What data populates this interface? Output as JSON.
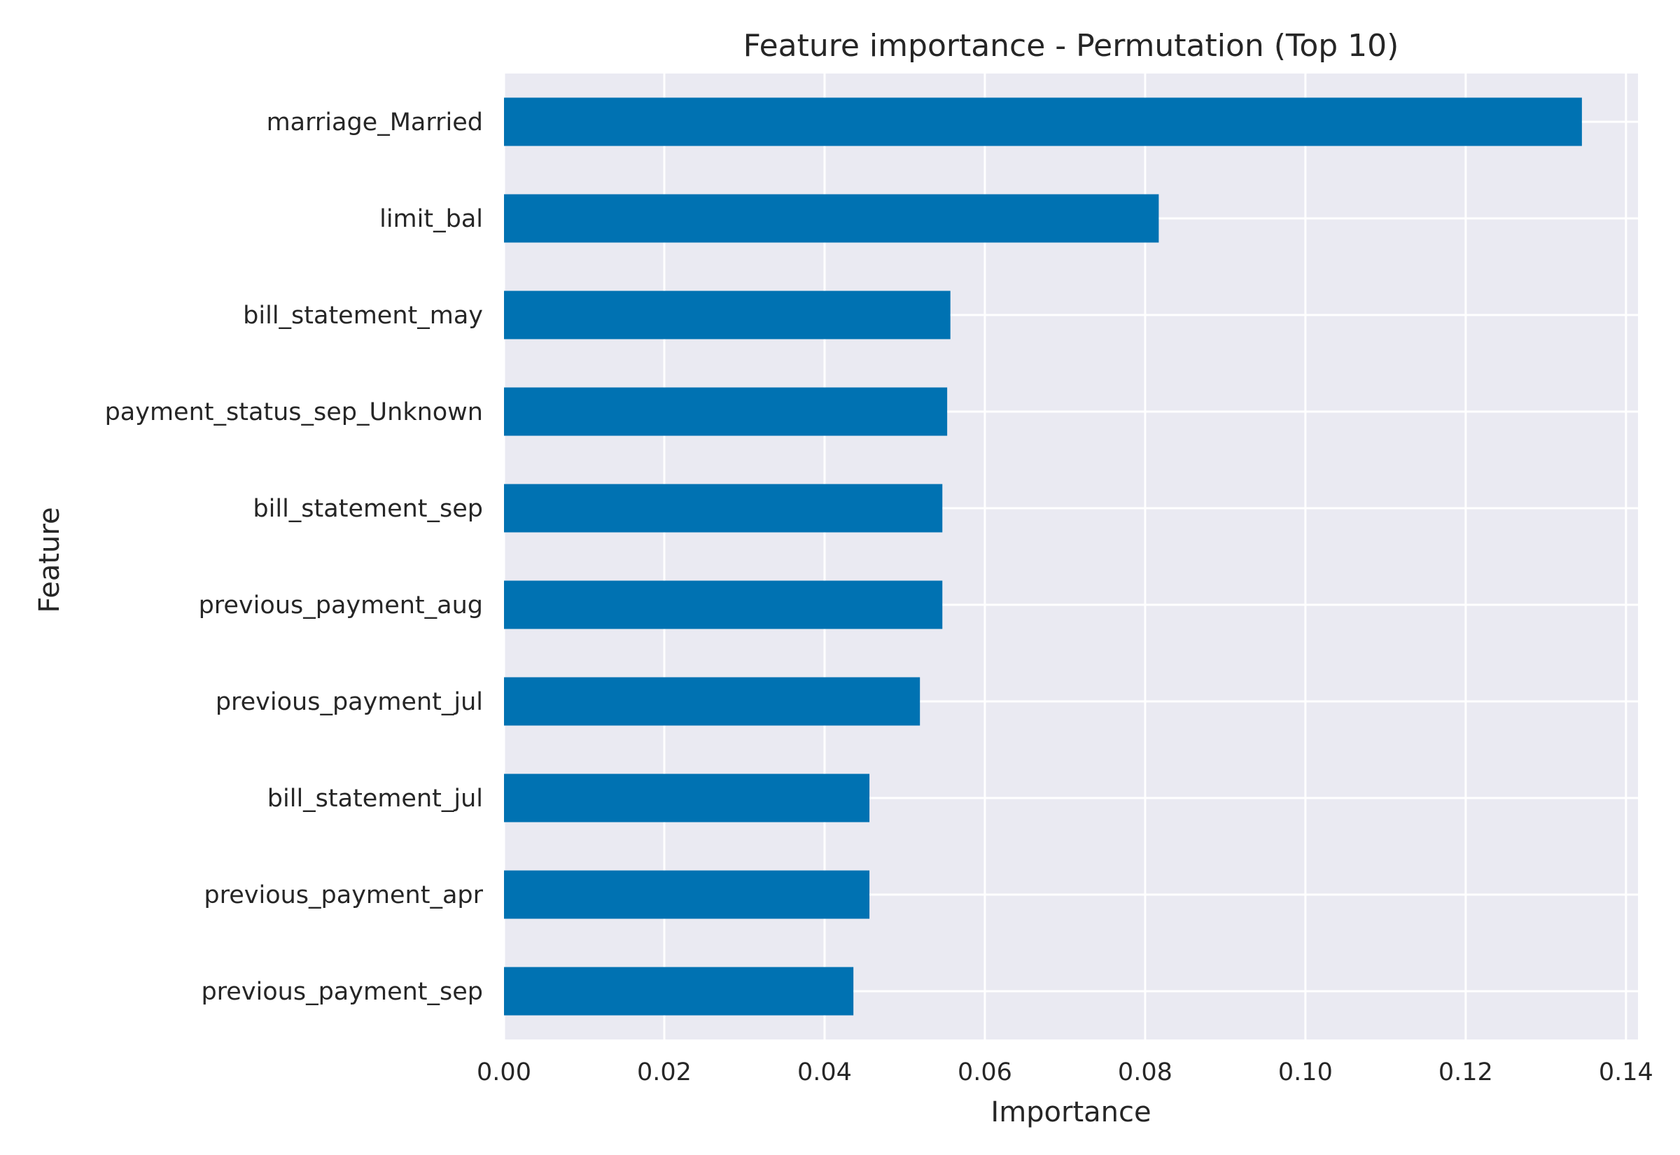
{
  "chart_data": {
    "type": "bar",
    "orientation": "horizontal",
    "title": "Feature importance - Permutation (Top 10)",
    "xlabel": "Importance",
    "ylabel": "Feature",
    "categories": [
      "marriage_Married",
      "limit_bal",
      "bill_statement_may",
      "payment_status_sep_Unknown",
      "bill_statement_sep",
      "previous_payment_aug",
      "previous_payment_jul",
      "bill_statement_jul",
      "previous_payment_apr",
      "previous_payment_sep"
    ],
    "values": [
      0.1345,
      0.0817,
      0.0557,
      0.0553,
      0.0547,
      0.0547,
      0.0519,
      0.0456,
      0.0456,
      0.0436
    ],
    "xlim": [
      0,
      0.1415
    ],
    "xticks": [
      0.0,
      0.02,
      0.04,
      0.06,
      0.08,
      0.1,
      0.12,
      0.14
    ],
    "xtick_labels": [
      "0.00",
      "0.02",
      "0.04",
      "0.06",
      "0.08",
      "0.10",
      "0.12",
      "0.14"
    ],
    "grid": true,
    "legend": "none",
    "colors": {
      "bar": "#0072b2",
      "plot_background": "#eaeaf2",
      "grid": "#ffffff",
      "text": "#262626"
    }
  }
}
